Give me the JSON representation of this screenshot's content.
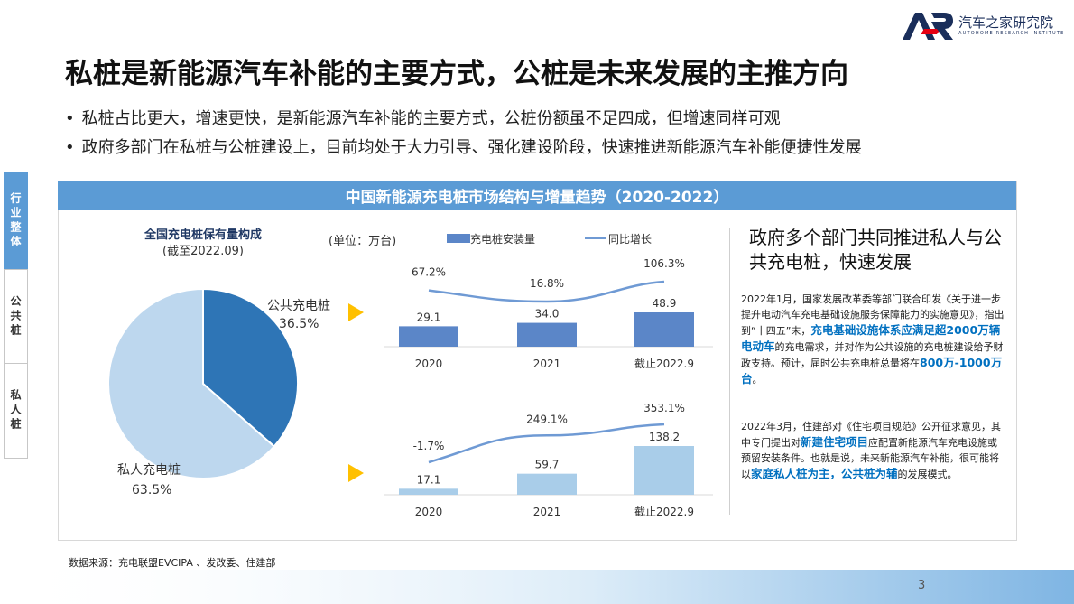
{
  "logo": {
    "cn": "汽车之家研究院",
    "en": "AUTOHOME RESEARCH INSTITUTE"
  },
  "title": "私桩是新能源汽车补能的主要方式，公桩是未来发展的主推方向",
  "bullets": [
    "私桩占比更大，增速更快，是新能源汽车补能的主要方式，公桩份额虽不足四成，但增速同样可观",
    "政府多部门在私桩与公桩建设上，目前均处于大力引导、强化建设阶段，快速推进新能源汽车补能便捷性发展"
  ],
  "side_tabs": [
    "行业整体",
    "公共桩",
    "私人桩"
  ],
  "panel_title": "中国新能源充电桩市场结构与增量趋势（2020-2022）",
  "pie": {
    "title": "全国充电桩保有量构成",
    "subtitle": "(截至2022.09)",
    "public_label": "公共充电桩",
    "public_pct": "36.5%",
    "private_label": "私人充电桩",
    "private_pct": "63.5%"
  },
  "unit_label": "(单位：万台)",
  "legend": {
    "bar": "充电桩安装量",
    "line": "同比增长"
  },
  "chart_data": [
    {
      "type": "pie",
      "categories": [
        "公共充电桩",
        "私人充电桩"
      ],
      "values": [
        36.5,
        63.5
      ],
      "title": "全国充电桩保有量构成",
      "subtitle": "(截至2022.09)",
      "colors": [
        "#2e75b6",
        "#bdd7ee"
      ]
    },
    {
      "type": "bar",
      "categories": [
        "2020",
        "2021",
        "截止2022.9"
      ],
      "series": [
        {
          "name": "充电桩安装量",
          "values": [
            29.1,
            34.0,
            48.9
          ],
          "labels": [
            "29.1",
            "34.0",
            "48.9"
          ]
        },
        {
          "name": "同比增长",
          "values": [
            67.2,
            16.8,
            106.3
          ],
          "labels": [
            "67.2%",
            "16.8%",
            "106.3%"
          ]
        }
      ],
      "color": "#5b86c8",
      "line_color": "#6f9ad4"
    },
    {
      "type": "bar",
      "categories": [
        "2020",
        "2021",
        "截止2022.9"
      ],
      "series": [
        {
          "name": "充电桩安装量",
          "values": [
            17.1,
            59.7,
            138.2
          ],
          "labels": [
            "17.1",
            "59.7",
            "138.2"
          ]
        },
        {
          "name": "同比增长",
          "values": [
            -1.7,
            249.1,
            353.1
          ],
          "labels": [
            "-1.7%",
            "249.1%",
            "353.1%"
          ]
        }
      ],
      "color": "#a9cde9",
      "line_color": "#6f9ad4"
    }
  ],
  "right": {
    "title": "政府多个部门共同推进私人与公共充电桩，快速发展",
    "p1": {
      "a": "2022年1月，国家发展改革委等部门联合印发《关于进一步提升电动汽车充电基础设施服务保障能力的实施意见》，指出到“十四五”末，",
      "hl1": "充电基础设施体系应满足超2000万辆电动车",
      "b": "的充电需求，并对作为公共设施的充电桩建设给予财政支持。预计，届时公共充电桩总量将在",
      "hl2": "800万-1000万台",
      "c": "。"
    },
    "p2": {
      "a": "2022年3月，住建部对《住宅项目规范》公开征求意见，其中专门提出对",
      "hl1": "新建住宅项目",
      "b": "应配置新能源汽车充电设施或预留安装条件。也就是说，未来新能源汽车补能，很可能将以",
      "hl2": "家庭私人桩为主，公共桩为辅",
      "c": "的发展模式。"
    }
  },
  "source": "数据来源：充电联盟EVCIPA 、发改委、住建部",
  "page_number": "3",
  "colors": {
    "accent": "#5b9bd5",
    "highlight": "#0070c0",
    "pie_public": "#2e75b6",
    "pie_private": "#bdd7ee",
    "triangle": "#ffc000"
  }
}
